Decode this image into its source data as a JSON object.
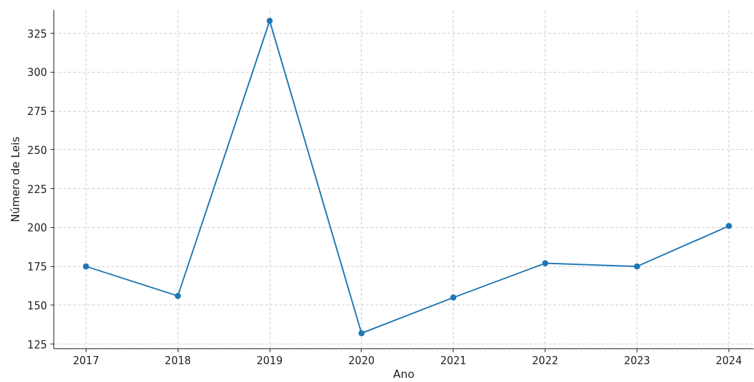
{
  "chart_data": {
    "type": "line",
    "xlabel": "Ano",
    "ylabel": "Número de Leis",
    "x": [
      2017,
      2018,
      2019,
      2020,
      2021,
      2022,
      2023,
      2024
    ],
    "series": [
      {
        "color": "#1f77b4",
        "values": [
          175,
          156,
          333,
          132,
          155,
          177,
          175,
          201
        ]
      }
    ],
    "xlim": [
      2016.65,
      2024.27
    ],
    "xticks": [
      2017,
      2018,
      2019,
      2020,
      2021,
      2022,
      2023,
      2024
    ],
    "ylim": [
      122,
      340
    ],
    "yticks": [
      125,
      150,
      175,
      200,
      225,
      250,
      275,
      300,
      325
    ],
    "grid": true,
    "marker": "circle",
    "line_style": "solid"
  }
}
